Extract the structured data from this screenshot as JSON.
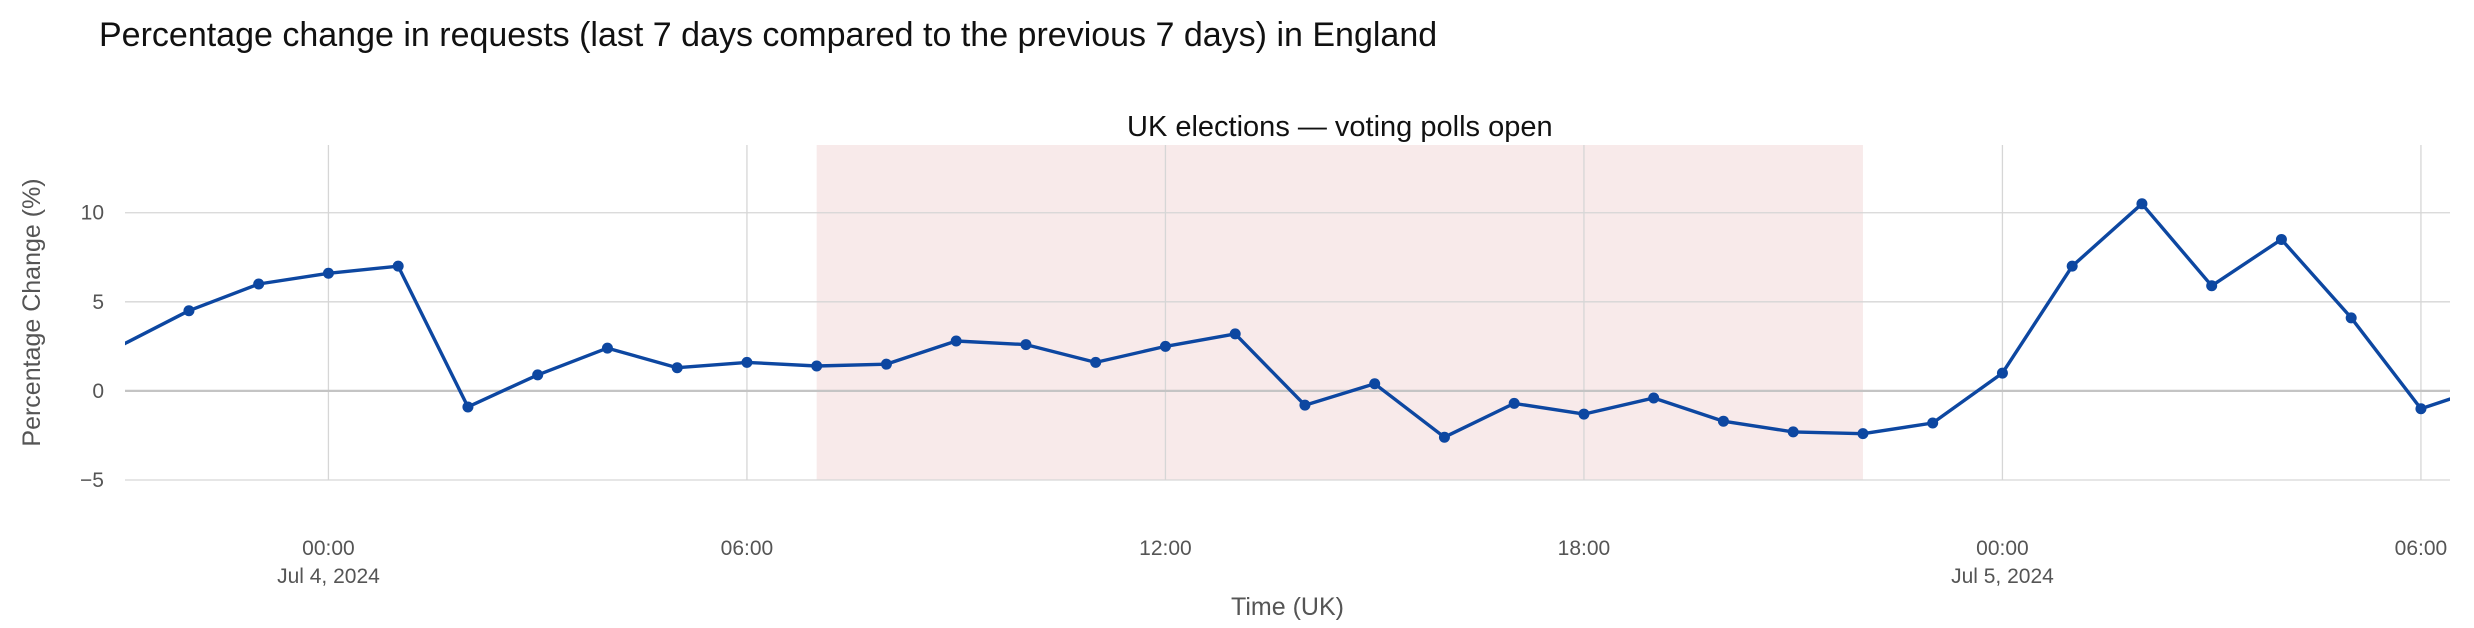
{
  "title": "Percentage change in requests (last 7 days compared to the previous 7 days) in England",
  "chart_data": {
    "type": "line",
    "xlabel": "Time (UK)",
    "ylabel": "Percentage Change (%)",
    "ylim": [
      -5,
      13.8
    ],
    "yticks": [
      -5,
      0,
      5,
      10
    ],
    "ytick_labels": [
      "−5",
      "0",
      "5",
      "10"
    ],
    "xlim": [
      "2024-07-03T21:05",
      "2024-07-05T06:25"
    ],
    "xticks": [
      {
        "t": "2024-07-04T00:00",
        "label": "00:00",
        "sublabel": "Jul 4, 2024"
      },
      {
        "t": "2024-07-04T06:00",
        "label": "06:00",
        "sublabel": ""
      },
      {
        "t": "2024-07-04T12:00",
        "label": "12:00",
        "sublabel": ""
      },
      {
        "t": "2024-07-04T18:00",
        "label": "18:00",
        "sublabel": ""
      },
      {
        "t": "2024-07-05T00:00",
        "label": "00:00",
        "sublabel": "Jul 5, 2024"
      },
      {
        "t": "2024-07-05T06:00",
        "label": "06:00",
        "sublabel": ""
      }
    ],
    "grid": true,
    "line_color": "#0d47a1",
    "band_color": "#f8eaea",
    "annotation": {
      "label": "UK elections — voting polls open",
      "start": "2024-07-04T07:00",
      "end": "2024-07-04T22:00"
    },
    "series": [
      {
        "x": [
          "2024-07-03T21:00",
          "2024-07-03T22:00",
          "2024-07-03T23:00",
          "2024-07-04T00:00",
          "2024-07-04T01:00",
          "2024-07-04T02:00",
          "2024-07-04T03:00",
          "2024-07-04T04:00",
          "2024-07-04T05:00",
          "2024-07-04T06:00",
          "2024-07-04T07:00",
          "2024-07-04T08:00",
          "2024-07-04T09:00",
          "2024-07-04T10:00",
          "2024-07-04T11:00",
          "2024-07-04T12:00",
          "2024-07-04T13:00",
          "2024-07-04T14:00",
          "2024-07-04T15:00",
          "2024-07-04T16:00",
          "2024-07-04T17:00",
          "2024-07-04T18:00",
          "2024-07-04T19:00",
          "2024-07-04T20:00",
          "2024-07-04T21:00",
          "2024-07-04T22:00",
          "2024-07-04T23:00",
          "2024-07-05T00:00",
          "2024-07-05T01:00",
          "2024-07-05T02:00",
          "2024-07-05T03:00",
          "2024-07-05T04:00",
          "2024-07-05T05:00",
          "2024-07-05T06:00",
          "2024-07-05T07:00"
        ],
        "values": [
          2.5,
          4.5,
          6.0,
          6.6,
          7.0,
          -0.9,
          0.9,
          2.4,
          1.3,
          1.6,
          1.4,
          1.5,
          2.8,
          2.6,
          1.6,
          2.5,
          3.2,
          -0.8,
          0.4,
          -2.6,
          -0.7,
          -1.3,
          -0.4,
          -1.7,
          -2.3,
          -2.4,
          -1.8,
          1.0,
          7.0,
          10.5,
          5.9,
          8.5,
          4.1,
          -1.0,
          0.3
        ]
      }
    ]
  }
}
